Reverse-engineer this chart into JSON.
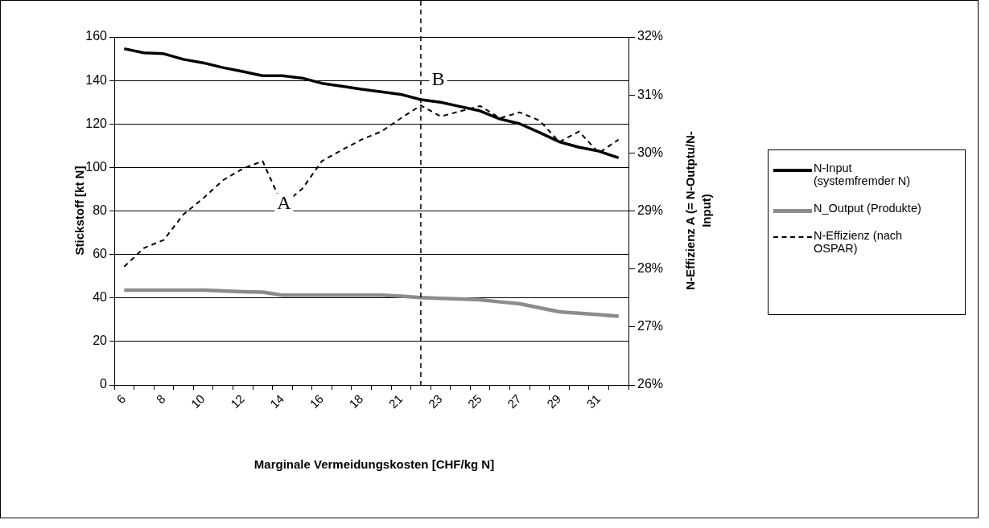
{
  "chart_data": {
    "type": "line",
    "categories": [
      "6",
      null,
      "8",
      null,
      "10",
      null,
      "12",
      null,
      "14",
      null,
      "16",
      null,
      "18",
      null,
      "21",
      null,
      "23",
      null,
      "25",
      null,
      "27",
      null,
      "29",
      null,
      "31",
      null
    ],
    "xlabel": "Marginale Vermeidungskosten [CHF/kg N]",
    "ylabel": "Stickstoff [kt N]",
    "y2label": "N-Effizienz A (= N-Outptu/N-Input)",
    "ylim": [
      0,
      160
    ],
    "yticks": [
      0,
      20,
      40,
      60,
      80,
      100,
      120,
      140,
      160
    ],
    "y2lim": [
      26,
      32
    ],
    "y2ticks": [
      {
        "value": 26,
        "label": "26%"
      },
      {
        "value": 27,
        "label": "27%"
      },
      {
        "value": 28,
        "label": "28%"
      },
      {
        "value": 29,
        "label": "29%"
      },
      {
        "value": 30,
        "label": "30%"
      },
      {
        "value": 31,
        "label": "31%"
      },
      {
        "value": 32,
        "label": "32%"
      }
    ],
    "grid": "y",
    "legend": "right",
    "marker": "none",
    "series": [
      {
        "name": "N-Input (systemfremder N)",
        "color": "#000000",
        "line_style": "solid",
        "values": [
          154.6,
          152.7,
          152.3,
          149.7,
          148.1,
          145.9,
          144.1,
          142.2,
          142.2,
          141.1,
          138.7,
          137.4,
          136.0,
          134.8,
          133.6,
          131.2,
          130.0,
          128.0,
          126.0,
          122.3,
          120.1,
          116.1,
          111.8,
          109.3,
          107.5,
          104.4
        ]
      },
      {
        "name": "N_Output (Produkte)",
        "color": "#8c8c8c",
        "line_style": "solid",
        "values": [
          43.6,
          43.6,
          43.6,
          43.6,
          43.6,
          43.2,
          42.9,
          42.7,
          41.3,
          41.3,
          41.3,
          41.3,
          41.3,
          41.3,
          40.8,
          40.2,
          39.8,
          39.5,
          39.2,
          38.2,
          37.3,
          35.5,
          33.6,
          33.0,
          32.3,
          31.6
        ]
      },
      {
        "name": "N-Effizienz  (nach OSPAR)",
        "color": "#000000",
        "line_style": "dashed",
        "axis": "y2",
        "values": [
          28.04,
          28.36,
          28.5,
          28.94,
          29.22,
          29.53,
          29.73,
          29.86,
          29.1,
          29.38,
          29.86,
          30.05,
          30.23,
          30.37,
          30.6,
          30.82,
          30.63,
          30.72,
          30.81,
          30.6,
          30.7,
          30.56,
          30.19,
          30.37,
          30.0,
          30.23
        ]
      }
    ],
    "annotations": [
      "A",
      "B"
    ]
  }
}
